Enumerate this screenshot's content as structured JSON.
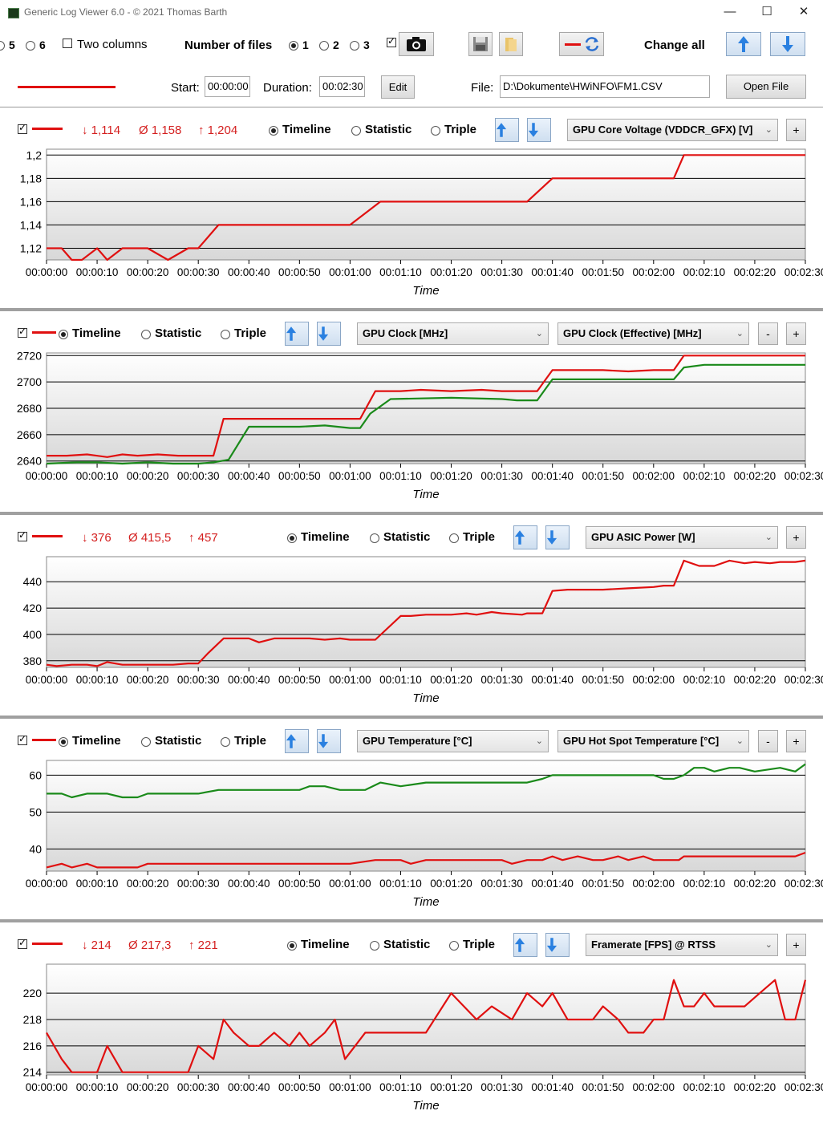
{
  "window": {
    "title": "Generic Log Viewer 6.0 - © 2021 Thomas Barth",
    "minimize": "—",
    "maximize": "☐",
    "close": "✕"
  },
  "toolbar": {
    "opt5": "5",
    "opt6": "6",
    "two_columns": "Two columns",
    "number_of_files": "Number of files",
    "files": [
      "1",
      "2",
      "3"
    ],
    "change_all": "Change all"
  },
  "file_row": {
    "start_label": "Start:",
    "start_value": "00:00:00",
    "duration_label": "Duration:",
    "duration_value": "00:02:30",
    "edit": "Edit",
    "file_label": "File:",
    "file_value": "D:\\Dokumente\\HWiNFO\\FM1.CSV",
    "open_file": "Open File"
  },
  "labels": {
    "timeline": "Timeline",
    "statistic": "Statistic",
    "triple": "Triple",
    "minus": "-",
    "plus": "+",
    "time": "Time"
  },
  "x_ticks": [
    "00:00:00",
    "00:00:10",
    "00:00:20",
    "00:00:30",
    "00:00:40",
    "00:00:50",
    "00:01:00",
    "00:01:10",
    "00:01:20",
    "00:01:30",
    "00:01:40",
    "00:01:50",
    "00:02:00",
    "00:02:10",
    "00:02:20",
    "00:02:30"
  ],
  "colors": {
    "series1": "#e01010",
    "series2": "#1a8a1a",
    "stats": "#d42020"
  },
  "panels": [
    {
      "stats": {
        "min": "↓ 1,114",
        "avg": "Ø 1,158",
        "max": "↑ 1,204"
      },
      "select1": "GPU Core Voltage (VDDCR_GFX) [V]",
      "chart_data": {
        "type": "line",
        "xlabel": "Time",
        "y_ticks": [
          "1,12",
          "1,14",
          "1,16",
          "1,18",
          "1,2"
        ],
        "ylim": [
          1.11,
          1.205
        ],
        "series": [
          {
            "color": "#e01010",
            "x": [
              0,
              3,
              5,
              7,
              10,
              12,
              15,
              20,
              24,
              28,
              30,
              34,
              60,
              66,
              95,
              100,
              124,
              126,
              150
            ],
            "y": [
              1.12,
              1.12,
              1.11,
              1.11,
              1.12,
              1.11,
              1.12,
              1.12,
              1.11,
              1.12,
              1.12,
              1.14,
              1.14,
              1.16,
              1.16,
              1.18,
              1.18,
              1.2,
              1.2
            ]
          }
        ]
      }
    },
    {
      "select1": "GPU Clock [MHz]",
      "select2": "GPU Clock (Effective) [MHz]",
      "chart_data": {
        "type": "line",
        "xlabel": "Time",
        "y_ticks": [
          "2640",
          "2660",
          "2680",
          "2700",
          "2720"
        ],
        "ylim": [
          2638,
          2722
        ],
        "series": [
          {
            "color": "#e01010",
            "x": [
              0,
              4,
              8,
              12,
              15,
              18,
              22,
              26,
              30,
              33,
              35,
              60,
              62,
              65,
              70,
              74,
              80,
              86,
              90,
              94,
              97,
              100,
              105,
              110,
              115,
              120,
              122,
              124,
              126,
              130,
              150
            ],
            "y": [
              2644,
              2644,
              2645,
              2643,
              2645,
              2644,
              2645,
              2644,
              2644,
              2644,
              2672,
              2672,
              2672,
              2693,
              2693,
              2694,
              2693,
              2694,
              2693,
              2693,
              2693,
              2709,
              2709,
              2709,
              2708,
              2709,
              2709,
              2709,
              2720,
              2720,
              2720
            ]
          },
          {
            "color": "#1a8a1a",
            "x": [
              0,
              6,
              10,
              15,
              20,
              25,
              30,
              33,
              36,
              40,
              50,
              55,
              60,
              62,
              64,
              68,
              80,
              90,
              93,
              95,
              97,
              100,
              110,
              120,
              122,
              124,
              126,
              130,
              150
            ],
            "y": [
              2638,
              2639,
              2639,
              2638,
              2639,
              2638,
              2638,
              2639,
              2641,
              2666,
              2666,
              2667,
              2665,
              2665,
              2676,
              2687,
              2688,
              2687,
              2686,
              2686,
              2686,
              2702,
              2702,
              2702,
              2702,
              2702,
              2711,
              2713,
              2713
            ]
          }
        ]
      }
    },
    {
      "stats": {
        "min": "↓ 376",
        "avg": "Ø 415,5",
        "max": "↑ 457"
      },
      "select1": "GPU ASIC Power [W]",
      "chart_data": {
        "type": "line",
        "xlabel": "Time",
        "y_ticks": [
          "380",
          "400",
          "420",
          "440"
        ],
        "ylim": [
          375,
          459
        ],
        "series": [
          {
            "color": "#e01010",
            "x": [
              0,
              2,
              5,
              8,
              10,
              12,
              15,
              18,
              22,
              25,
              28,
              30,
              32,
              35,
              40,
              42,
              45,
              48,
              50,
              52,
              55,
              58,
              60,
              62,
              65,
              70,
              72,
              75,
              78,
              80,
              83,
              85,
              88,
              90,
              94,
              95,
              98,
              100,
              103,
              105,
              108,
              110,
              115,
              120,
              122,
              124,
              126,
              129,
              132,
              135,
              138,
              140,
              143,
              145,
              148,
              150
            ],
            "y": [
              377,
              376,
              377,
              377,
              376,
              379,
              377,
              377,
              377,
              377,
              378,
              378,
              386,
              397,
              397,
              394,
              397,
              397,
              397,
              397,
              396,
              397,
              396,
              396,
              396,
              414,
              414,
              415,
              415,
              415,
              416,
              415,
              417,
              416,
              415,
              416,
              416,
              433,
              434,
              434,
              434,
              434,
              435,
              436,
              437,
              437,
              456,
              452,
              452,
              456,
              454,
              455,
              454,
              455,
              455,
              456
            ]
          }
        ]
      }
    },
    {
      "select1": "GPU Temperature [°C]",
      "select2": "GPU Hot Spot Temperature [°C]",
      "chart_data": {
        "type": "line",
        "xlabel": "Time",
        "y_ticks": [
          "40",
          "50",
          "60"
        ],
        "ylim": [
          34,
          64
        ],
        "series": [
          {
            "color": "#e01010",
            "x": [
              0,
              3,
              5,
              8,
              10,
              15,
              18,
              20,
              25,
              30,
              35,
              40,
              50,
              60,
              65,
              68,
              70,
              72,
              75,
              78,
              80,
              85,
              90,
              92,
              95,
              98,
              100,
              102,
              105,
              108,
              110,
              113,
              115,
              118,
              120,
              122,
              125,
              126,
              130,
              140,
              145,
              148,
              150
            ],
            "y": [
              35,
              36,
              35,
              36,
              35,
              35,
              35,
              36,
              36,
              36,
              36,
              36,
              36,
              36,
              37,
              37,
              37,
              36,
              37,
              37,
              37,
              37,
              37,
              36,
              37,
              37,
              38,
              37,
              38,
              37,
              37,
              38,
              37,
              38,
              37,
              37,
              37,
              38,
              38,
              38,
              38,
              38,
              39
            ]
          },
          {
            "color": "#1a8a1a",
            "x": [
              0,
              3,
              5,
              8,
              12,
              15,
              18,
              20,
              25,
              28,
              30,
              34,
              36,
              40,
              45,
              50,
              52,
              55,
              58,
              60,
              63,
              66,
              70,
              75,
              80,
              90,
              95,
              98,
              100,
              105,
              110,
              118,
              120,
              122,
              124,
              126,
              128,
              130,
              132,
              135,
              137,
              140,
              145,
              148,
              150
            ],
            "y": [
              55,
              55,
              54,
              55,
              55,
              54,
              54,
              55,
              55,
              55,
              55,
              56,
              56,
              56,
              56,
              56,
              57,
              57,
              56,
              56,
              56,
              58,
              57,
              58,
              58,
              58,
              58,
              59,
              60,
              60,
              60,
              60,
              60,
              59,
              59,
              60,
              62,
              62,
              61,
              62,
              62,
              61,
              62,
              61,
              63
            ]
          }
        ]
      }
    },
    {
      "stats": {
        "min": "↓ 214",
        "avg": "Ø 217,3",
        "max": "↑ 221"
      },
      "select1": "Framerate [FPS] @ RTSS",
      "chart_data": {
        "type": "line",
        "xlabel": "Time",
        "y_ticks": [
          "214",
          "216",
          "218",
          "220"
        ],
        "ylim": [
          213.8,
          222.2
        ],
        "series": [
          {
            "color": "#e01010",
            "x": [
              0,
              3,
              5,
              8,
              10,
              12,
              15,
              18,
              20,
              25,
              28,
              30,
              33,
              35,
              37,
              40,
              42,
              45,
              48,
              50,
              52,
              55,
              57,
              59,
              61,
              63,
              65,
              70,
              75,
              80,
              85,
              88,
              92,
              95,
              98,
              100,
              103,
              105,
              108,
              110,
              113,
              115,
              118,
              120,
              122,
              124,
              126,
              128,
              130,
              132,
              134,
              136,
              138,
              141,
              144,
              146,
              148,
              150
            ],
            "y": [
              217,
              215,
              214,
              214,
              214,
              216,
              214,
              214,
              214,
              214,
              214,
              216,
              215,
              218,
              217,
              216,
              216,
              217,
              216,
              217,
              216,
              217,
              218,
              215,
              216,
              217,
              217,
              217,
              217,
              220,
              218,
              219,
              218,
              220,
              219,
              220,
              218,
              218,
              218,
              219,
              218,
              217,
              217,
              218,
              218,
              221,
              219,
              219,
              220,
              219,
              219,
              219,
              219,
              220,
              221,
              218,
              218,
              221
            ]
          }
        ]
      }
    }
  ]
}
